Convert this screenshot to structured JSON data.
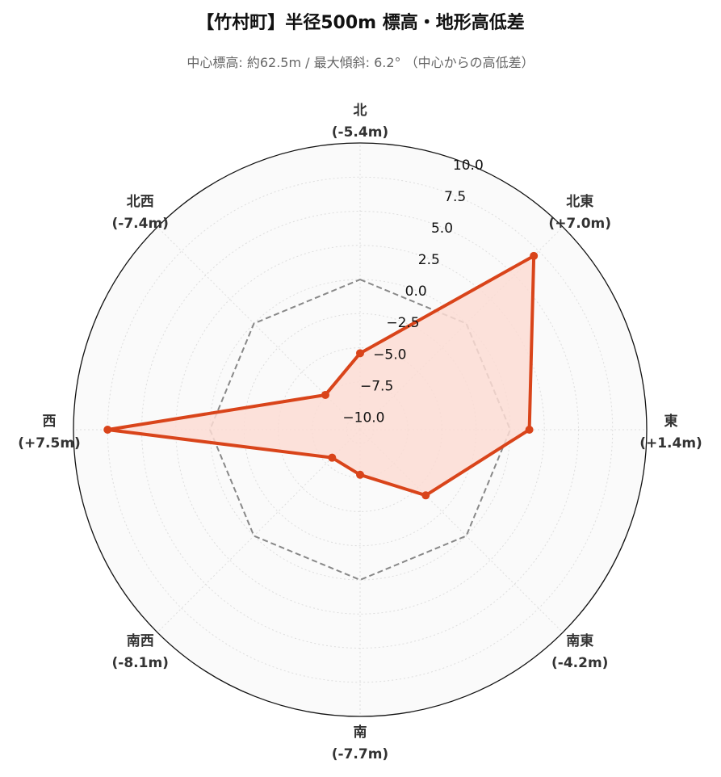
{
  "title": "【竹村町】半径500m 標高・地形高低差",
  "subtitle": "中心標高: 約62.5m / 最大傾斜: 6.2° （中心からの高低差）",
  "chart_data": {
    "type": "radar",
    "title": "【竹村町】半径500m 標高・地形高低差",
    "subtitle": "中心標高: 約62.5m / 最大傾斜: 6.2° （中心からの高低差）",
    "categories": [
      "北",
      "北東",
      "東",
      "南東",
      "南",
      "南西",
      "西",
      "北西"
    ],
    "value_labels": [
      "(-5.4m)",
      "(+7.0m)",
      "(+1.4m)",
      "(-4.2m)",
      "(-7.7m)",
      "(-8.1m)",
      "(+7.5m)",
      "(-7.4m)"
    ],
    "series": [
      {
        "values": [
          -5.4,
          7.0,
          1.4,
          -4.2,
          -7.7,
          -8.1,
          7.5,
          -7.4
        ],
        "color": "#d9441a",
        "fill": "#fcdcd3"
      }
    ],
    "reference_value": 0,
    "radial_range": [
      -11,
      10
    ],
    "radial_ticks": [
      -10.0,
      -7.5,
      -5.0,
      -2.5,
      0.0,
      2.5,
      5.0,
      7.5,
      10.0
    ],
    "radial_tick_labels": [
      "−10.0",
      "−7.5",
      "−5.0",
      "−2.5",
      "0.0",
      "2.5",
      "5.0",
      "7.5",
      "10.0"
    ],
    "grid": true
  }
}
